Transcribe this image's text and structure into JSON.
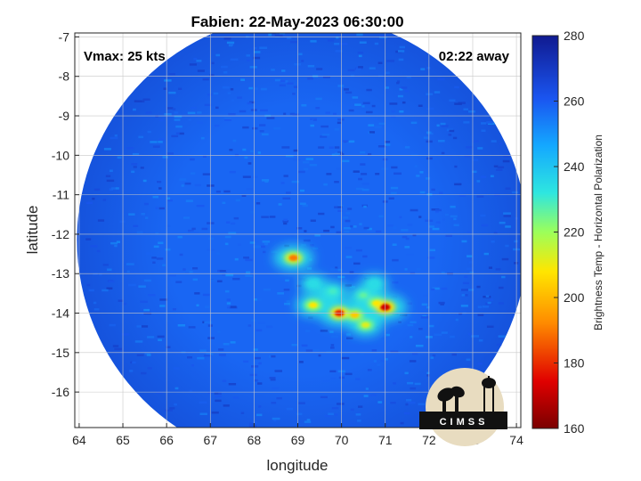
{
  "title": "Fabien: 22-May-2023 06:30:00",
  "annotations": {
    "vmax": "Vmax: 25 kts",
    "time_away": "02:22 away"
  },
  "axes": {
    "xlabel": "longitude",
    "ylabel": "latitude",
    "xlim": [
      63.9,
      74.1
    ],
    "ylim": [
      -16.9,
      -6.9
    ],
    "xticks": [
      "64",
      "65",
      "66",
      "67",
      "68",
      "69",
      "70",
      "71",
      "72",
      "73",
      "74"
    ],
    "yticks": [
      "-7",
      "-8",
      "-9",
      "-10",
      "-11",
      "-12",
      "-13",
      "-14",
      "-15",
      "-16"
    ],
    "grid": true
  },
  "colorbar": {
    "label": "Brightness Temp - Horizontal Polarization",
    "ticks": [
      "280",
      "260",
      "240",
      "220",
      "200",
      "180",
      "160"
    ],
    "range": [
      160,
      280
    ],
    "colors": [
      "#7a0000",
      "#e00000",
      "#ff8c00",
      "#ffe600",
      "#9cff5a",
      "#2ee6e0",
      "#14a8ff",
      "#1a55f0",
      "#101a90"
    ]
  },
  "swath": {
    "center_lon": 69.1,
    "center_lat": -12.15,
    "radius_deg": 5.15,
    "background_tb": 262
  },
  "convection": [
    {
      "lon": 68.9,
      "lat": -12.6,
      "tb": 188
    },
    {
      "lon": 69.35,
      "lat": -13.8,
      "tb": 205
    },
    {
      "lon": 69.95,
      "lat": -14.0,
      "tb": 178
    },
    {
      "lon": 70.3,
      "lat": -14.05,
      "tb": 200
    },
    {
      "lon": 70.55,
      "lat": -14.3,
      "tb": 210
    },
    {
      "lon": 70.8,
      "lat": -13.75,
      "tb": 205
    },
    {
      "lon": 71.0,
      "lat": -13.85,
      "tb": 172
    },
    {
      "lon": 70.5,
      "lat": -13.55,
      "tb": 228
    },
    {
      "lon": 69.8,
      "lat": -13.45,
      "tb": 232
    },
    {
      "lon": 69.35,
      "lat": -13.25,
      "tb": 238
    },
    {
      "lon": 70.75,
      "lat": -13.25,
      "tb": 238
    }
  ],
  "logo": {
    "text": "CIMSS"
  }
}
